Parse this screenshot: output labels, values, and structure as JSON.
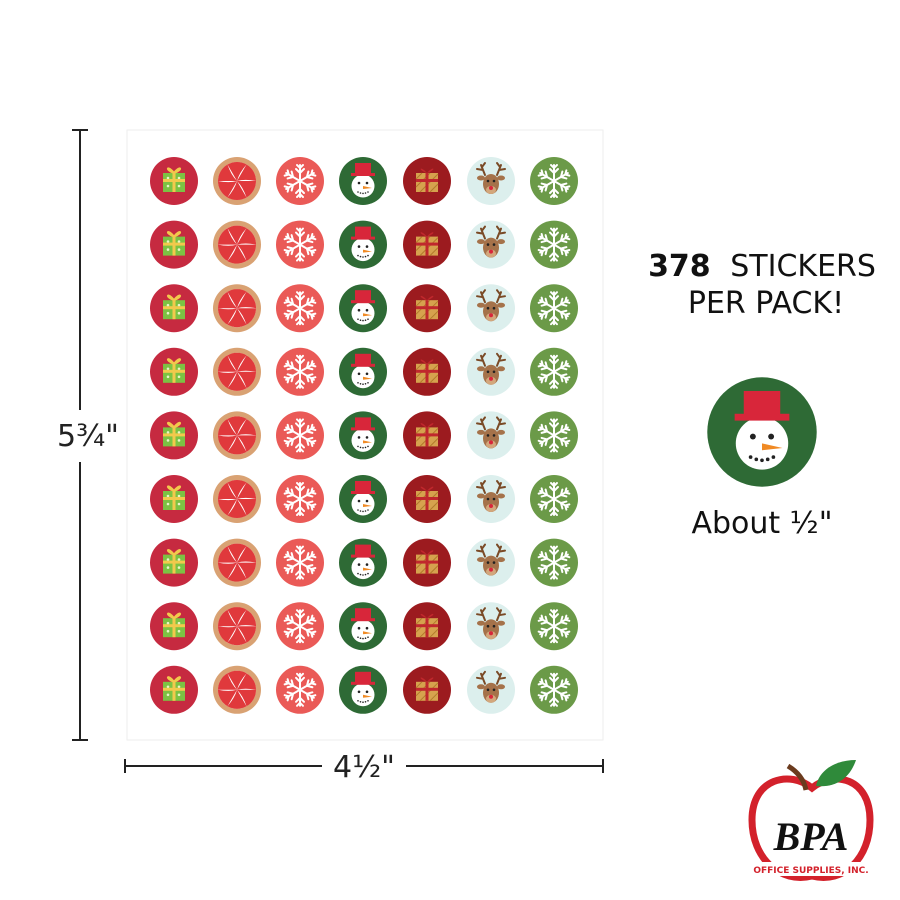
{
  "dimensions": {
    "height": "5¾\"",
    "width": "4½\""
  },
  "headline": {
    "count": "378",
    "label": "STICKERS",
    "line2": "PER PACK!"
  },
  "caption": "About ½\"",
  "logo": {
    "name": "BPA",
    "tagline": "OFFICE SUPPLIES, INC."
  }
}
